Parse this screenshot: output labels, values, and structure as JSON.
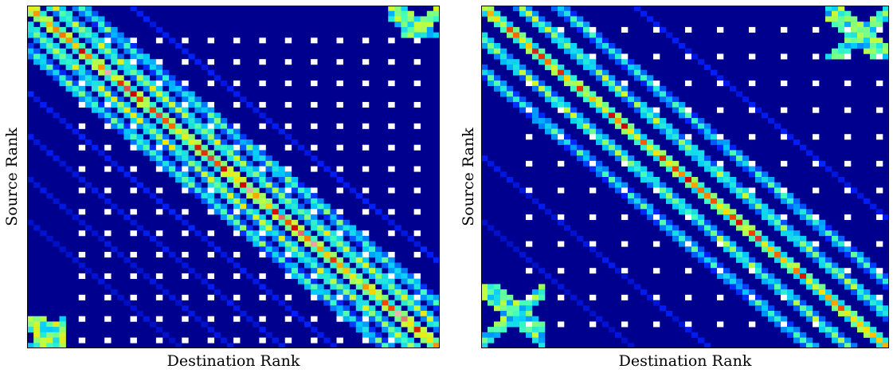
{
  "colors": {
    "background": "#00008f",
    "frame": "#000000",
    "colormap": [
      "#00008f",
      "#0020ff",
      "#00c8ff",
      "#40ffc0",
      "#c0ff40",
      "#ffe000",
      "#ff6000",
      "#c80000",
      "#ffffff"
    ]
  },
  "chart_data": [
    {
      "type": "heatmap",
      "title": "",
      "xlabel": "Destination Rank",
      "ylabel": "Source Rank",
      "colormap": "jet",
      "grid": false,
      "legend": "none",
      "n_ranks": 64,
      "background_value": 0,
      "features": [
        {
          "kind": "band",
          "offset": 0,
          "peak": 0.88,
          "x_range": [
            0,
            64
          ]
        },
        {
          "kind": "band",
          "offset": 4,
          "peak": 0.55,
          "x_range": [
            0,
            64
          ]
        },
        {
          "kind": "band",
          "offset": -4,
          "peak": 0.55,
          "x_range": [
            0,
            64
          ]
        },
        {
          "kind": "band",
          "offset": 8,
          "peak": 0.42,
          "x_range": [
            0,
            64
          ]
        },
        {
          "kind": "band",
          "offset": -8,
          "peak": 0.42,
          "x_range": [
            0,
            64
          ]
        },
        {
          "kind": "faint_band",
          "offset": 16,
          "value": 0.12
        },
        {
          "kind": "faint_band",
          "offset": -16,
          "value": 0.12
        },
        {
          "kind": "faint_band",
          "offset": -24,
          "value": 0.1
        },
        {
          "kind": "faint_band",
          "offset": -32,
          "value": 0.09
        },
        {
          "kind": "faint_band",
          "offset": -40,
          "value": 0.08
        },
        {
          "kind": "corner_block",
          "x_range": [
            56,
            64
          ],
          "y_range": [
            0,
            6
          ],
          "value": 0.45
        },
        {
          "kind": "corner_block",
          "x_range": [
            0,
            6
          ],
          "y_range": [
            58,
            64
          ],
          "value": 0.45
        },
        {
          "kind": "point_grid",
          "x_start": 8,
          "x_step": 4,
          "y_start": 6,
          "y_step": 4,
          "value": 1.0
        }
      ]
    },
    {
      "type": "heatmap",
      "title": "",
      "xlabel": "Destination Rank",
      "ylabel": "Source Rank",
      "colormap": "jet",
      "grid": false,
      "legend": "none",
      "n_ranks": 64,
      "background_value": 0,
      "features": [
        {
          "kind": "band",
          "offset": 0,
          "peak": 0.82,
          "x_range": [
            0,
            64
          ]
        },
        {
          "kind": "band",
          "offset": 6,
          "peak": 0.5,
          "x_range": [
            0,
            64
          ]
        },
        {
          "kind": "band",
          "offset": -6,
          "peak": 0.5,
          "x_range": [
            0,
            64
          ]
        },
        {
          "kind": "band",
          "offset": 12,
          "peak": 0.38,
          "x_range": [
            0,
            64
          ]
        },
        {
          "kind": "band",
          "offset": -12,
          "peak": 0.38,
          "x_range": [
            0,
            64
          ]
        },
        {
          "kind": "faint_band",
          "offset": 24,
          "value": 0.12
        },
        {
          "kind": "faint_band",
          "offset": -28,
          "value": 0.1
        },
        {
          "kind": "faint_band",
          "offset": -40,
          "value": 0.08
        },
        {
          "kind": "corner_block",
          "x_range": [
            54,
            64
          ],
          "y_range": [
            0,
            10
          ],
          "value": 0.4
        },
        {
          "kind": "corner_block",
          "x_range": [
            0,
            10
          ],
          "y_range": [
            52,
            64
          ],
          "value": 0.4
        },
        {
          "kind": "point_grid",
          "x_start": 7,
          "x_step": 5,
          "y_start": 4,
          "y_step": 5,
          "value": 1.0
        }
      ]
    }
  ]
}
